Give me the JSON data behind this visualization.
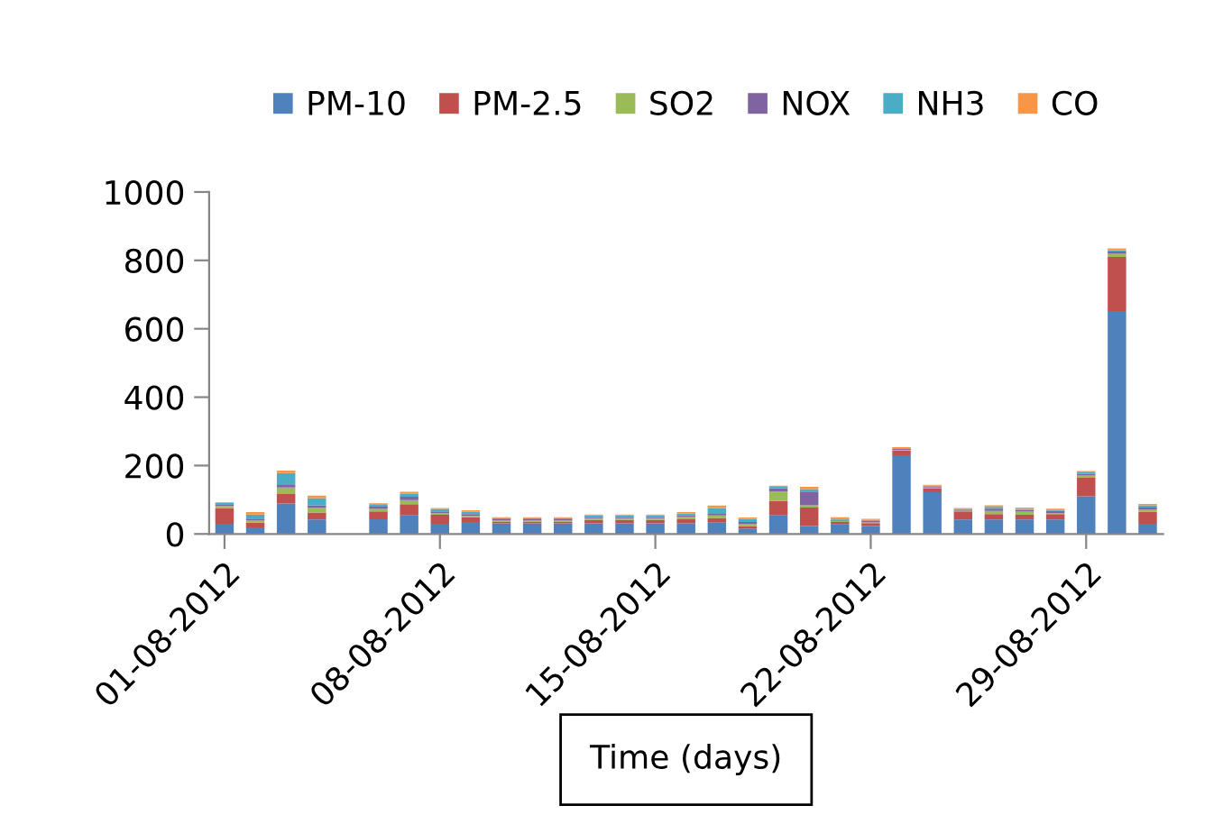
{
  "chart_data": {
    "type": "bar",
    "stacked": true,
    "xlabel": "Time (days)",
    "x": [
      "2012-08-01",
      "2012-08-02",
      "2012-08-03",
      "2012-08-04",
      "2012-08-06",
      "2012-08-07",
      "2012-08-08",
      "2012-08-09",
      "2012-08-10",
      "2012-08-11",
      "2012-08-12",
      "2012-08-13",
      "2012-08-14",
      "2012-08-15",
      "2012-08-16",
      "2012-08-17",
      "2012-08-18",
      "2012-08-19",
      "2012-08-20",
      "2012-08-21",
      "2012-08-22",
      "2012-08-23",
      "2012-08-24",
      "2012-08-25",
      "2012-08-26",
      "2012-08-27",
      "2012-08-28",
      "2012-08-29",
      "2012-08-30",
      "2012-08-31"
    ],
    "series": [
      {
        "name": "PM-10",
        "color": "#4f81bd",
        "values": [
          30,
          19,
          89,
          42,
          43,
          54,
          30,
          35,
          31,
          31,
          31,
          31,
          31,
          31,
          31,
          33,
          16,
          54,
          23,
          28,
          23,
          230,
          122,
          42,
          42,
          42,
          42,
          110,
          652,
          30
        ]
      },
      {
        "name": "PM-2.5",
        "color": "#c0504d",
        "values": [
          45,
          14,
          28,
          21,
          23,
          33,
          26,
          14,
          5,
          5,
          5,
          10,
          10,
          10,
          12,
          14,
          7,
          42,
          54,
          7,
          9,
          14,
          12,
          24,
          16,
          14,
          16,
          54,
          158,
          35
        ]
      },
      {
        "name": "SO2",
        "color": "#9bbb59",
        "values": [
          7,
          7,
          19,
          14,
          7,
          12,
          5,
          4,
          4,
          4,
          4,
          5,
          5,
          5,
          7,
          7,
          7,
          28,
          7,
          3,
          3,
          2,
          2,
          2,
          9,
          9,
          3,
          7,
          9,
          7
        ]
      },
      {
        "name": "NOX",
        "color": "#8064a2",
        "values": [
          5,
          5,
          7,
          7,
          7,
          10,
          5,
          5,
          3,
          3,
          3,
          4,
          4,
          4,
          5,
          5,
          5,
          9,
          40,
          3,
          3,
          3,
          3,
          3,
          7,
          5,
          7,
          5,
          7,
          5
        ]
      },
      {
        "name": "NH3",
        "color": "#4bacc6",
        "values": [
          4,
          12,
          35,
          21,
          5,
          9,
          7,
          7,
          3,
          3,
          3,
          4,
          4,
          4,
          5,
          17,
          9,
          5,
          7,
          4,
          3,
          2,
          2,
          2,
          5,
          3,
          3,
          4,
          4,
          7
        ]
      },
      {
        "name": "CO",
        "color": "#f79646",
        "values": [
          2,
          7,
          7,
          7,
          5,
          5,
          3,
          4,
          3,
          3,
          3,
          3,
          3,
          3,
          4,
          7,
          4,
          3,
          7,
          4,
          3,
          3,
          3,
          3,
          5,
          4,
          3,
          4,
          5,
          4
        ]
      }
    ],
    "xlim": [
      "2012-07-31T12:00",
      "2012-08-31T12:00"
    ],
    "xticks": [
      {
        "value": "2012-08-01",
        "label": "01-08-2012"
      },
      {
        "value": "2012-08-08",
        "label": "08-08-2012"
      },
      {
        "value": "2012-08-15",
        "label": "15-08-2012"
      },
      {
        "value": "2012-08-22",
        "label": "22-08-2012"
      },
      {
        "value": "2012-08-29",
        "label": "29-08-2012"
      }
    ],
    "ylim": [
      0,
      1000
    ],
    "yticks": [
      0,
      200,
      400,
      600,
      800,
      1000
    ],
    "grid": false,
    "legend": "top"
  }
}
